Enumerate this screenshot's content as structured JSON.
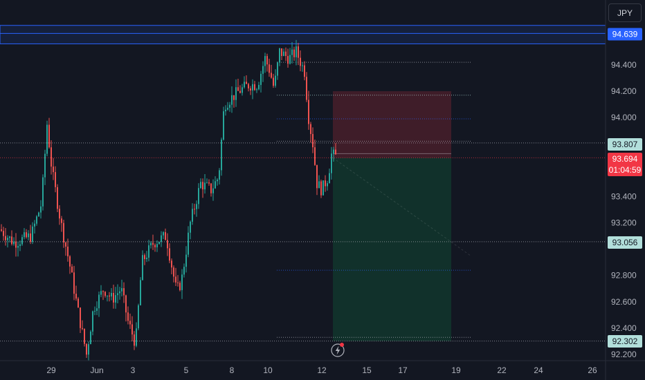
{
  "toolbar": {
    "currency_label": "JPY"
  },
  "chart_data": {
    "type": "candlestick",
    "symbol_currency": "JPY",
    "ylim": [
      92.2,
      94.639
    ],
    "y_ticks": [
      92.2,
      92.4,
      92.6,
      92.8,
      93.2,
      93.4,
      94.0,
      94.2,
      94.4
    ],
    "y_tick_labels": [
      "92.200",
      "92.400",
      "92.600",
      "92.800",
      "93.200",
      "93.400",
      "94.000",
      "94.200",
      "94.400"
    ],
    "x_tick_labels": [
      "29",
      "Jun",
      "3",
      "5",
      "8",
      "10",
      "12",
      "15",
      "17",
      "19",
      "22",
      "24",
      "26"
    ],
    "price_tags": [
      {
        "label": "94.639",
        "role": "resistance-zone",
        "color": "#2962ff"
      },
      {
        "label": "93.807",
        "role": "level",
        "color": "#b2dfdb"
      },
      {
        "label": "93.694",
        "sub": "01:04:59",
        "role": "last-price",
        "color": "#f23645"
      },
      {
        "label": "93.056",
        "role": "level",
        "color": "#b2dfdb"
      },
      {
        "label": "92.302",
        "role": "level",
        "color": "#b2dfdb"
      }
    ],
    "position": {
      "type": "short",
      "entry": 93.694,
      "stop": 94.2,
      "target": 92.302,
      "stop_color": "#f2364533",
      "target_color": "#08995133"
    },
    "resistance_zone": {
      "top": 94.7,
      "bottom": 94.56,
      "color": "#2962ff"
    },
    "candle_colors": {
      "up": "#26a69a",
      "down": "#ef5350"
    },
    "events_icon": "lightning-icon"
  }
}
